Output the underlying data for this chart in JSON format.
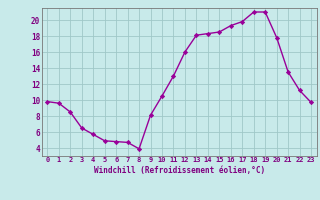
{
  "x": [
    0,
    1,
    2,
    3,
    4,
    5,
    6,
    7,
    8,
    9,
    10,
    11,
    12,
    13,
    14,
    15,
    16,
    17,
    18,
    19,
    20,
    21,
    22,
    23
  ],
  "y": [
    9.8,
    9.6,
    8.5,
    6.5,
    5.7,
    4.9,
    4.8,
    4.7,
    3.9,
    8.1,
    10.5,
    13.0,
    16.0,
    18.1,
    18.3,
    18.5,
    19.3,
    19.8,
    21.0,
    21.0,
    17.8,
    13.5,
    11.2,
    9.7
  ],
  "line_color": "#990099",
  "marker": "D",
  "markersize": 2.2,
  "linewidth": 1.0,
  "ylim": [
    3,
    21.5
  ],
  "xlim": [
    -0.5,
    23.5
  ],
  "yticks": [
    4,
    6,
    8,
    10,
    12,
    14,
    16,
    18,
    20
  ],
  "xtick_labels": [
    "0",
    "1",
    "2",
    "3",
    "4",
    "5",
    "6",
    "7",
    "8",
    "9",
    "10",
    "11",
    "12",
    "13",
    "14",
    "15",
    "16",
    "17",
    "18",
    "19",
    "20",
    "21",
    "22",
    "23"
  ],
  "xlabel": "Windchill (Refroidissement éolien,°C)",
  "bg_color": "#c8eaea",
  "grid_color": "#a0c8c8",
  "label_color": "#800080",
  "tick_color": "#800080",
  "tick_fontsize": 5.0,
  "xlabel_fontsize": 5.5
}
